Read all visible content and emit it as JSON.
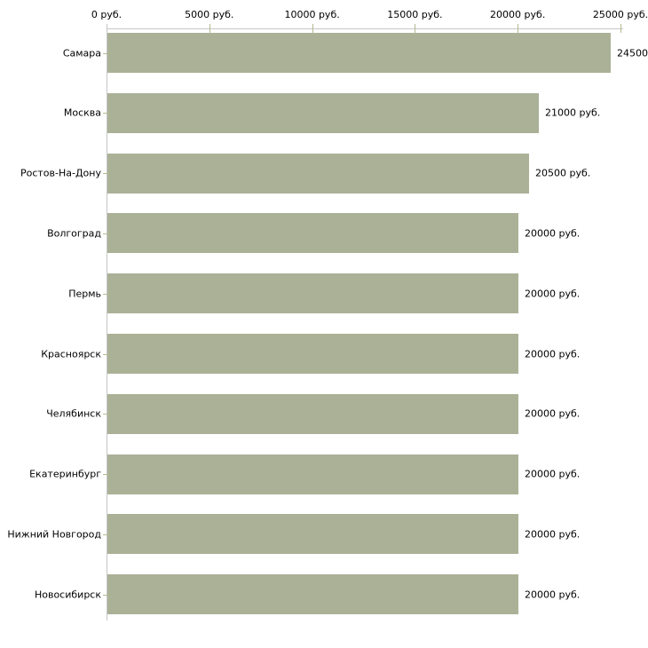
{
  "chart_data": {
    "type": "bar",
    "orientation": "horizontal",
    "title": "",
    "xlabel": "",
    "ylabel": "",
    "legend": false,
    "grid": false,
    "xlim": [
      0,
      25000
    ],
    "x_ticks": [
      0,
      5000,
      10000,
      15000,
      20000,
      25000
    ],
    "x_tick_labels": [
      "0 руб.",
      "5000 руб.",
      "10000 руб.",
      "15000 руб.",
      "20000 руб.",
      "25000 руб."
    ],
    "categories": [
      "Самара",
      "Москва",
      "Ростов-На-Дону",
      "Волгоград",
      "Пермь",
      "Красноярск",
      "Челябинск",
      "Екатеринбург",
      "Нижний Новгород",
      "Новосибирск"
    ],
    "values": [
      24500,
      21000,
      20500,
      20000,
      20000,
      20000,
      20000,
      20000,
      20000,
      20000
    ],
    "value_labels": [
      "24500",
      "21000 руб.",
      "20500 руб.",
      "20000 руб.",
      "20000 руб.",
      "20000 руб.",
      "20000 руб.",
      "20000 руб.",
      "20000 руб.",
      "20000 руб."
    ],
    "colors": {
      "bar": "#abb197",
      "axis": "#c6c6c6",
      "tick": "#b5ba8f",
      "text": "#000000",
      "background": "#ffffff"
    }
  }
}
